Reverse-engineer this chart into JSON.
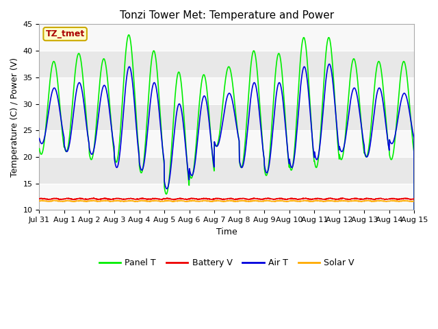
{
  "title": "Tonzi Tower Met: Temperature and Power",
  "xlabel": "Time",
  "ylabel": "Temperature (C) / Power (V)",
  "ylim": [
    10,
    45
  ],
  "x_tick_labels": [
    "Jul 31",
    "Aug 1",
    "Aug 2",
    "Aug 3",
    "Aug 4",
    "Aug 5",
    "Aug 6",
    "Aug 7",
    "Aug 8",
    "Aug 9",
    "Aug 10",
    "Aug 11",
    "Aug 12",
    "Aug 13",
    "Aug 14",
    "Aug 15"
  ],
  "label_box_text": "TZ_tmet",
  "label_box_color": "#ffffcc",
  "label_box_edge_color": "#ccaa00",
  "label_text_color": "#aa0000",
  "panel_t_color": "#00ee00",
  "battery_v_color": "#ee0000",
  "air_t_color": "#0000dd",
  "solar_v_color": "#ffaa00",
  "fig_bg_color": "#ffffff",
  "plot_bg_color": "#e8e8e8",
  "band_color": "#f8f8f8",
  "grid_color": "#ffffff",
  "title_fontsize": 11,
  "axis_fontsize": 9,
  "tick_fontsize": 8,
  "legend_fontsize": 9,
  "line_width": 1.2,
  "battery_v_base": 12.1,
  "solar_v_base": 11.7
}
